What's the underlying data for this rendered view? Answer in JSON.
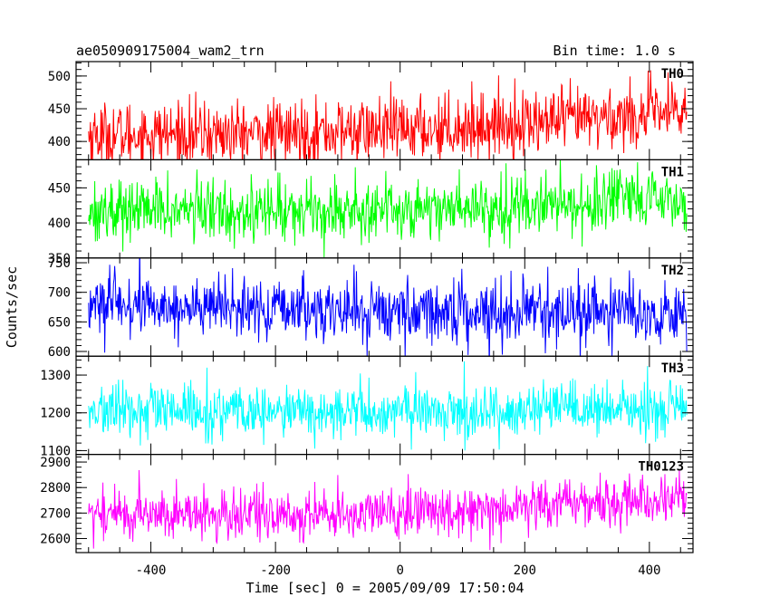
{
  "header": {
    "left": "ae050909175004_wam2_trn",
    "right": "Bin time: 1.0 s"
  },
  "chart_data": {
    "type": "line",
    "xlabel": "Time [sec] 0 = 2005/09/09 17:50:04",
    "ylabel": "Counts/sec",
    "xlim": [
      -520,
      470
    ],
    "xticks": [
      -400,
      -200,
      0,
      200,
      400
    ],
    "x_range": [
      -500,
      460
    ],
    "bin_time": 1.0,
    "grid": false,
    "panels": [
      {
        "name": "TH0",
        "color": "#ff0000",
        "ylim": [
          372,
          522
        ],
        "yticks": [
          400,
          450,
          500
        ],
        "trend": {
          "x": [
            -500,
            -200,
            0,
            200,
            460
          ],
          "mean": [
            410,
            412,
            418,
            428,
            445
          ]
        },
        "noise_sd": 25
      },
      {
        "name": "TH1",
        "color": "#00ff00",
        "ylim": [
          350,
          490
        ],
        "yticks": [
          350,
          400,
          450
        ],
        "trend": {
          "x": [
            -500,
            -200,
            0,
            200,
            460
          ],
          "mean": [
            418,
            418,
            420,
            425,
            432
          ]
        },
        "noise_sd": 22
      },
      {
        "name": "TH2",
        "color": "#0000ff",
        "ylim": [
          592,
          758
        ],
        "yticks": [
          600,
          650,
          700,
          750
        ],
        "trend": {
          "x": [
            -500,
            -200,
            0,
            200,
            460
          ],
          "mean": [
            680,
            670,
            668,
            668,
            665
          ]
        },
        "noise_sd": 26
      },
      {
        "name": "TH3",
        "color": "#00ffff",
        "ylim": [
          1090,
          1350
        ],
        "yticks": [
          1100,
          1200,
          1300
        ],
        "trend": {
          "x": [
            -500,
            -200,
            0,
            200,
            460
          ],
          "mean": [
            1205,
            1200,
            1202,
            1205,
            1208
          ]
        },
        "noise_sd": 35
      },
      {
        "name": "TH0123",
        "color": "#ff00ff",
        "ylim": [
          2545,
          2930
        ],
        "yticks": [
          2600,
          2700,
          2800,
          2900
        ],
        "trend": {
          "x": [
            -500,
            -200,
            0,
            200,
            460
          ],
          "mean": [
            2700,
            2690,
            2700,
            2730,
            2760
          ]
        },
        "noise_sd": 50
      }
    ]
  }
}
